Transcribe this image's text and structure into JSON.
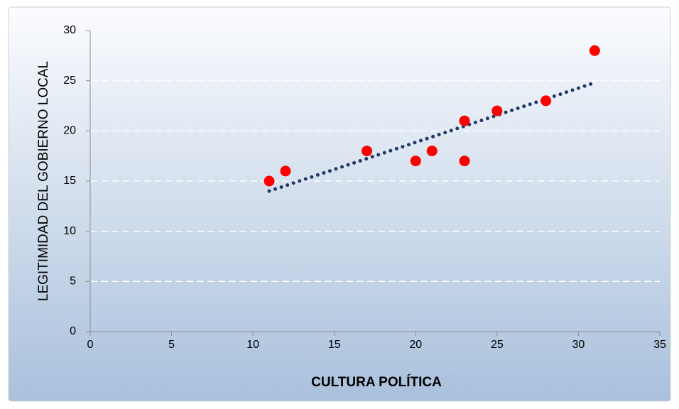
{
  "chart_data": {
    "type": "scatter",
    "xlabel": "CULTURA POLÍTICA",
    "ylabel": "LEGITIMIDAD DEL GOBIERNO LOCAL",
    "series": [
      {
        "color": "#ff0000",
        "x": [
          11,
          12,
          17,
          20,
          21,
          23,
          23,
          25,
          28,
          31
        ],
        "values": [
          15,
          16,
          18,
          17,
          18,
          21,
          17,
          22,
          23,
          28
        ]
      }
    ],
    "trendline": {
      "color": "#1f3864",
      "x": [
        11,
        31
      ],
      "values": [
        14,
        24.8
      ]
    },
    "xlim": [
      0,
      35
    ],
    "xticks": [
      0,
      5,
      10,
      15,
      20,
      25,
      30,
      35
    ],
    "ylim": [
      0,
      30
    ],
    "yticks": [
      0,
      5,
      10,
      15,
      20,
      25,
      30
    ],
    "grid": true
  }
}
